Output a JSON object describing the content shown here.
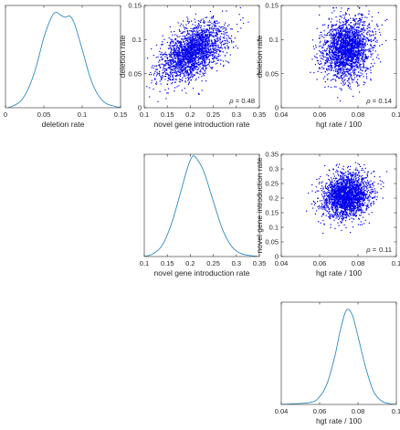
{
  "figure": {
    "style": {
      "axis_color": "#262626",
      "density_color": "#2E8BC0",
      "scatter_color": "#0000EE"
    }
  },
  "chart_data": [
    {
      "id": "p11",
      "type": "line",
      "row": 0,
      "col": 0,
      "title": "",
      "xlabel": "deletion rate",
      "ylabel": "",
      "xlim": [
        0,
        0.15
      ],
      "ylim": [
        0,
        1.05
      ],
      "xticks": [
        0,
        0.05,
        0.1,
        0.15
      ],
      "xtick_labels": [
        "0",
        "0.05",
        "0.1",
        "0.15"
      ],
      "yticks": [],
      "ytick_labels": [],
      "grid": false,
      "legend": "none",
      "series": [
        {
          "x": [
            0.003,
            0.01,
            0.02,
            0.03,
            0.04,
            0.05,
            0.06,
            0.066,
            0.072,
            0.078,
            0.084,
            0.09,
            0.1,
            0.11,
            0.12,
            0.13,
            0.14,
            0.15
          ],
          "y": [
            0.0,
            0.02,
            0.07,
            0.2,
            0.42,
            0.72,
            0.93,
            0.98,
            0.95,
            0.93,
            0.94,
            0.86,
            0.6,
            0.32,
            0.14,
            0.05,
            0.02,
            0.0
          ]
        }
      ]
    },
    {
      "id": "p12",
      "type": "scatter",
      "row": 0,
      "col": 1,
      "title": "",
      "xlabel": "novel gene introduction rate",
      "ylabel": "deletion rate",
      "xlim": [
        0.1,
        0.35
      ],
      "ylim": [
        0,
        0.15
      ],
      "xticks": [
        0.1,
        0.15,
        0.2,
        0.25,
        0.3,
        0.35
      ],
      "xtick_labels": [
        "0.1",
        "0.15",
        "0.2",
        "0.25",
        "0.3",
        "0.35"
      ],
      "yticks": [
        0,
        0.05,
        0.1,
        0.15
      ],
      "ytick_labels": [
        "0",
        "0.05",
        "0.1",
        "0.15"
      ],
      "grid": false,
      "legend": "none",
      "rho_symbol": "ρ =",
      "rho_value": "0.48",
      "cloud": {
        "n": 2200,
        "x_mean": 0.205,
        "x_sd": 0.035,
        "y_mean": 0.082,
        "y_sd": 0.021,
        "corr": 0.48,
        "seed": 11
      }
    },
    {
      "id": "p13",
      "type": "scatter",
      "row": 0,
      "col": 2,
      "title": "",
      "xlabel": "hgt rate / 100",
      "ylabel": "deletion rate",
      "xlim": [
        0.04,
        0.1
      ],
      "ylim": [
        0,
        0.15
      ],
      "xticks": [
        0.04,
        0.06,
        0.08,
        0.1
      ],
      "xtick_labels": [
        "0.04",
        "0.06",
        "0.08",
        "0.1"
      ],
      "yticks": [
        0,
        0.05,
        0.1,
        0.15
      ],
      "ytick_labels": [
        "0",
        "0.05",
        "0.1",
        "0.15"
      ],
      "grid": false,
      "legend": "none",
      "rho_symbol": "ρ =",
      "rho_value": "0.14",
      "cloud": {
        "n": 2200,
        "x_mean": 0.074,
        "x_sd": 0.0062,
        "y_mean": 0.086,
        "y_sd": 0.022,
        "corr": 0.14,
        "seed": 23
      }
    },
    {
      "id": "p22",
      "type": "line",
      "row": 1,
      "col": 1,
      "title": "",
      "xlabel": "novel gene introduction rate",
      "ylabel": "",
      "xlim": [
        0.1,
        0.35
      ],
      "ylim": [
        0,
        1.02
      ],
      "xticks": [
        0.1,
        0.15,
        0.2,
        0.25,
        0.3,
        0.35
      ],
      "xtick_labels": [
        "0.1",
        "0.15",
        "0.2",
        "0.25",
        "0.3",
        "0.35"
      ],
      "yticks": [],
      "ytick_labels": [],
      "grid": false,
      "legend": "none",
      "series": [
        {
          "x": [
            0.1,
            0.12,
            0.14,
            0.16,
            0.18,
            0.195,
            0.205,
            0.215,
            0.23,
            0.25,
            0.27,
            0.29,
            0.31,
            0.33,
            0.35
          ],
          "y": [
            0.0,
            0.03,
            0.12,
            0.34,
            0.66,
            0.9,
            1.0,
            0.97,
            0.84,
            0.55,
            0.27,
            0.1,
            0.03,
            0.01,
            0.0
          ]
        }
      ]
    },
    {
      "id": "p23",
      "type": "scatter",
      "row": 1,
      "col": 2,
      "title": "",
      "xlabel": "hgt rate / 100",
      "ylabel": "novel gene introduction rate",
      "xlim": [
        0.04,
        0.1
      ],
      "ylim": [
        0,
        0.35
      ],
      "xticks": [
        0.04,
        0.06,
        0.08,
        0.1
      ],
      "xtick_labels": [
        "0.04",
        "0.06",
        "0.08",
        "0.1"
      ],
      "yticks": [
        0,
        0.05,
        0.1,
        0.15,
        0.2,
        0.25,
        0.3,
        0.35
      ],
      "ytick_labels": [
        "0",
        "0.05",
        "0.1",
        "0.15",
        "0.2",
        "0.25",
        "0.3",
        "0.35"
      ],
      "grid": false,
      "legend": "none",
      "rho_symbol": "ρ =",
      "rho_value": "0.11",
      "cloud": {
        "n": 2200,
        "x_mean": 0.074,
        "x_sd": 0.0062,
        "y_mean": 0.208,
        "y_sd": 0.037,
        "corr": 0.11,
        "seed": 37
      }
    },
    {
      "id": "p33",
      "type": "line",
      "row": 2,
      "col": 2,
      "title": "",
      "xlabel": "hgt rate / 100",
      "ylabel": "",
      "xlim": [
        0.04,
        0.1
      ],
      "ylim": [
        0,
        1.05
      ],
      "xticks": [
        0.04,
        0.06,
        0.08,
        0.1
      ],
      "xtick_labels": [
        "0.04",
        "0.06",
        "0.08",
        "0.1"
      ],
      "yticks": [],
      "ytick_labels": [],
      "grid": false,
      "legend": "none",
      "series": [
        {
          "x": [
            0.04,
            0.055,
            0.06,
            0.064,
            0.068,
            0.071,
            0.074,
            0.077,
            0.08,
            0.084,
            0.088,
            0.092,
            0.096,
            0.1
          ],
          "y": [
            0.0,
            0.02,
            0.08,
            0.22,
            0.5,
            0.78,
            0.97,
            0.92,
            0.7,
            0.38,
            0.14,
            0.04,
            0.01,
            0.0
          ]
        }
      ]
    }
  ]
}
